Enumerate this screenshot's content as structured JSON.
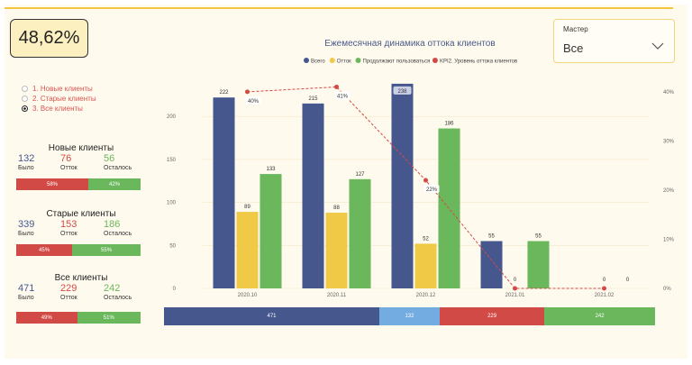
{
  "kpi": {
    "value": "48,62%"
  },
  "master": {
    "label": "Мастер",
    "value": "Все"
  },
  "radios": [
    {
      "label": "1. Новые клиенты",
      "selected": false
    },
    {
      "label": "2. Старые клиенты",
      "selected": false
    },
    {
      "label": "3. Все клиенты",
      "selected": true
    }
  ],
  "cards": [
    {
      "title": "Новые клиенты",
      "was": "132",
      "churn": "76",
      "left": "56",
      "was_label": "Было",
      "churn_label": "Отток",
      "left_label": "Осталось",
      "churn_pct": "58%",
      "left_pct": "42%",
      "churn_share": 0.58,
      "left_share": 0.42
    },
    {
      "title": "Старые клиенты",
      "was": "339",
      "churn": "153",
      "left": "186",
      "was_label": "Было",
      "churn_label": "Отток",
      "left_label": "Осталось",
      "churn_pct": "45%",
      "left_pct": "55%",
      "churn_share": 0.45,
      "left_share": 0.55
    },
    {
      "title": "Все клиенты",
      "was": "471",
      "churn": "229",
      "left": "242",
      "was_label": "Было",
      "churn_label": "Отток",
      "left_label": "Осталось",
      "churn_pct": "49%",
      "left_pct": "51%",
      "churn_share": 0.49,
      "left_share": 0.51
    }
  ],
  "bottom_bar": [
    {
      "label": "471",
      "value": 471,
      "color": "#46578e"
    },
    {
      "label": "132",
      "value": 132,
      "color": "#72ace0"
    },
    {
      "label": "229",
      "value": 229,
      "color": "#d24a45"
    },
    {
      "label": "242",
      "value": 242,
      "color": "#6ab75c"
    }
  ],
  "chart_data": {
    "type": "bar",
    "title": "Ежемесячная динамика оттока клиентов",
    "categories": [
      "2020.10",
      "2020.11",
      "2020.12",
      "2021.01",
      "2021.02"
    ],
    "series": [
      {
        "name": "Всего",
        "color": "#46578e",
        "values": [
          222,
          215,
          238,
          55,
          null
        ],
        "labels": [
          "222",
          "215",
          "238",
          "55",
          ""
        ]
      },
      {
        "name": "Отток",
        "color": "#f0c947",
        "values": [
          89,
          88,
          52,
          0,
          0
        ],
        "labels": [
          "89",
          "88",
          "52",
          "0",
          "0"
        ]
      },
      {
        "name": "Продолжают пользоваться",
        "color": "#6ab75c",
        "values": [
          133,
          127,
          186,
          55,
          0
        ],
        "labels": [
          "133",
          "127",
          "186",
          "55",
          "0"
        ]
      }
    ],
    "line_series": {
      "name": "KPI2. Уровень оттока клиентов",
      "color": "#d24a45",
      "values": [
        40,
        41,
        22,
        0,
        0
      ],
      "labels": [
        "40%",
        "41%",
        "22%",
        "",
        ""
      ]
    },
    "ylim": [
      0,
      240
    ],
    "yticks": [
      "0",
      "50",
      "100",
      "150",
      "200"
    ],
    "ytick_values": [
      0,
      50,
      100,
      150,
      200
    ],
    "y2lim": [
      0,
      42
    ],
    "y2ticks": [
      "0%",
      "10%",
      "20%",
      "30%",
      "40%"
    ],
    "y2tick_values": [
      0,
      10,
      20,
      30,
      40
    ],
    "legend_position": "top",
    "grid": true
  }
}
